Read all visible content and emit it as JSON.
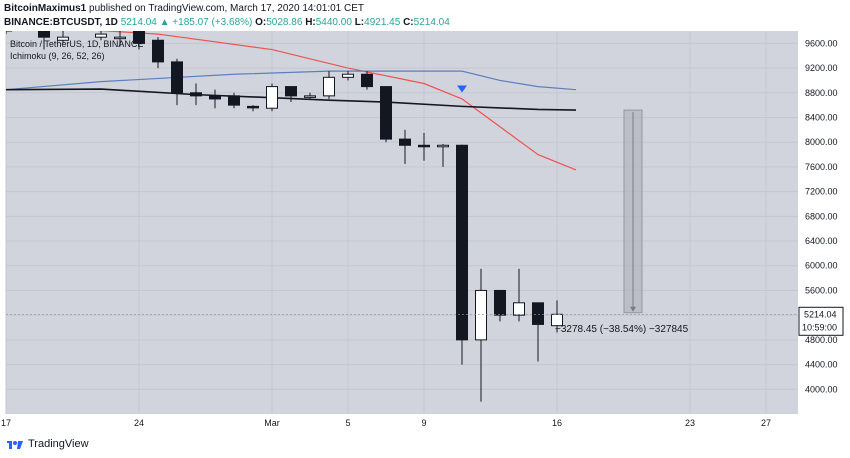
{
  "header": {
    "author": "BitcoinMaximus1",
    "published_text": "published on TradingView.com, March 17, 2020 14:01:01 CET",
    "symbol": "BINANCE:BTCUSDT, 1D",
    "last": "5214.04",
    "change": "▲ +185.07 (+3.68%)",
    "o_label": "O:",
    "o_val": "5028.86",
    "h_label": "H:",
    "h_val": "5440.00",
    "l_label": "L:",
    "l_val": "4921.45",
    "c_label": "C:",
    "c_val": "5214.04"
  },
  "legend": {
    "line1": "Bitcoin / TetherUS, 1D, BINANCE",
    "line2": "Ichimoku (9, 26, 52, 26)"
  },
  "price_label": "5214.04",
  "countdown_label": "10:59:00",
  "measure_label": "−3278.45 (−38.54%) −327845",
  "footer_text": "TradingView",
  "colors": {
    "background": "#d1d4dc",
    "up_candle": "#ffffff",
    "down_candle": "#131722",
    "ma_red": "#ef5350",
    "ma_blue": "#5b7fbf",
    "ma_black": "#131722",
    "marker_blue": "#2962ff",
    "price_box": "#ffffff"
  },
  "chart_data": {
    "type": "candlestick",
    "ylim": [
      3600,
      9800
    ],
    "y_ticks": [
      4000,
      4400,
      4800,
      5200,
      5600,
      6000,
      6400,
      6800,
      7200,
      7600,
      8000,
      8400,
      8800,
      9200,
      9600
    ],
    "y_tick_labels": [
      "4000.00",
      "4400.00",
      "4800.00",
      "5200.00",
      "5600.00",
      "6000.00",
      "6400.00",
      "6800.00",
      "7200.00",
      "7600.00",
      "8000.00",
      "8400.00",
      "8800.00",
      "9200.00",
      "9600.00"
    ],
    "x_ticks": [
      {
        "day": -20,
        "label": "17"
      },
      {
        "day": -13,
        "label": "24"
      },
      {
        "day": -6,
        "label": "Mar"
      },
      {
        "day": -2,
        "label": "5"
      },
      {
        "day": 2,
        "label": "9"
      },
      {
        "day": 9,
        "label": "16"
      },
      {
        "day": 16,
        "label": "23"
      },
      {
        "day": 20,
        "label": "27"
      }
    ],
    "candles": [
      {
        "day": -20,
        "o": 9900,
        "h": 9950,
        "l": 9750,
        "c": 9800
      },
      {
        "day": -18,
        "o": 9800,
        "h": 9900,
        "l": 9500,
        "c": 9700
      },
      {
        "day": -17,
        "o": 9650,
        "h": 9800,
        "l": 9600,
        "c": 9700
      },
      {
        "day": -15,
        "o": 9700,
        "h": 9900,
        "l": 9650,
        "c": 9750
      },
      {
        "day": -14,
        "o": 9700,
        "h": 9800,
        "l": 9550,
        "c": 9700
      },
      {
        "day": -13,
        "o": 9800,
        "h": 9850,
        "l": 9500,
        "c": 9600
      },
      {
        "day": -12,
        "o": 9650,
        "h": 9700,
        "l": 9200,
        "c": 9300
      },
      {
        "day": -11,
        "o": 9300,
        "h": 9350,
        "l": 8600,
        "c": 8800
      },
      {
        "day": -10,
        "o": 8800,
        "h": 8950,
        "l": 8600,
        "c": 8750
      },
      {
        "day": -9,
        "o": 8750,
        "h": 8850,
        "l": 8550,
        "c": 8700
      },
      {
        "day": -8,
        "o": 8750,
        "h": 8800,
        "l": 8550,
        "c": 8600
      },
      {
        "day": -7,
        "o": 8580,
        "h": 8600,
        "l": 8500,
        "c": 8560
      },
      {
        "day": -6,
        "o": 8550,
        "h": 8950,
        "l": 8500,
        "c": 8900
      },
      {
        "day": -5,
        "o": 8900,
        "h": 8900,
        "l": 8650,
        "c": 8750
      },
      {
        "day": -4,
        "o": 8750,
        "h": 8800,
        "l": 8700,
        "c": 8750
      },
      {
        "day": -3,
        "o": 8750,
        "h": 9150,
        "l": 8700,
        "c": 9050
      },
      {
        "day": -2,
        "o": 9050,
        "h": 9150,
        "l": 9000,
        "c": 9100
      },
      {
        "day": -1,
        "o": 9100,
        "h": 9150,
        "l": 8850,
        "c": 8900
      },
      {
        "day": 0,
        "o": 8900,
        "h": 8900,
        "l": 8000,
        "c": 8050
      },
      {
        "day": 1,
        "o": 8050,
        "h": 8200,
        "l": 7650,
        "c": 7950
      },
      {
        "day": 2,
        "o": 7950,
        "h": 8150,
        "l": 7700,
        "c": 7930
      },
      {
        "day": 3,
        "o": 7930,
        "h": 7970,
        "l": 7600,
        "c": 7950
      },
      {
        "day": 4,
        "o": 7950,
        "h": 7960,
        "l": 4400,
        "c": 4800
      },
      {
        "day": 5,
        "o": 4800,
        "h": 5950,
        "l": 3800,
        "c": 5600
      },
      {
        "day": 6,
        "o": 5600,
        "h": 5600,
        "l": 5100,
        "c": 5200
      },
      {
        "day": 7,
        "o": 5200,
        "h": 5950,
        "l": 5100,
        "c": 5400
      },
      {
        "day": 8,
        "o": 5400,
        "h": 5400,
        "l": 4450,
        "c": 5050
      },
      {
        "day": 9,
        "o": 5030,
        "h": 5440,
        "l": 4920,
        "c": 5214
      }
    ],
    "series": [
      {
        "name": "",
        "color": "red",
        "points": [
          [
            -20,
            9900
          ],
          [
            -12,
            9750
          ],
          [
            -6,
            9500
          ],
          [
            -2,
            9200
          ],
          [
            2,
            8950
          ],
          [
            4,
            8700
          ],
          [
            6,
            8250
          ],
          [
            8,
            7800
          ],
          [
            10,
            7550
          ]
        ]
      },
      {
        "name": "",
        "color": "blue",
        "points": [
          [
            -20,
            8850
          ],
          [
            -15,
            8980
          ],
          [
            -8,
            9100
          ],
          [
            -3,
            9150
          ],
          [
            0,
            9150
          ],
          [
            4,
            9150
          ],
          [
            6,
            9000
          ],
          [
            8,
            8900
          ],
          [
            10,
            8850
          ]
        ]
      },
      {
        "name": "",
        "color": "black",
        "points": [
          [
            -20,
            8850
          ],
          [
            -15,
            8860
          ],
          [
            -10,
            8770
          ],
          [
            -6,
            8720
          ],
          [
            -3,
            8680
          ],
          [
            0,
            8650
          ],
          [
            4,
            8580
          ],
          [
            8,
            8530
          ],
          [
            10,
            8520
          ]
        ]
      }
    ],
    "marker": {
      "day": 4,
      "value": 8870,
      "shape": "down-triangle"
    },
    "measure": {
      "day": 13,
      "top": 8520,
      "bottom": 5240
    },
    "last_price": 5214.04
  }
}
